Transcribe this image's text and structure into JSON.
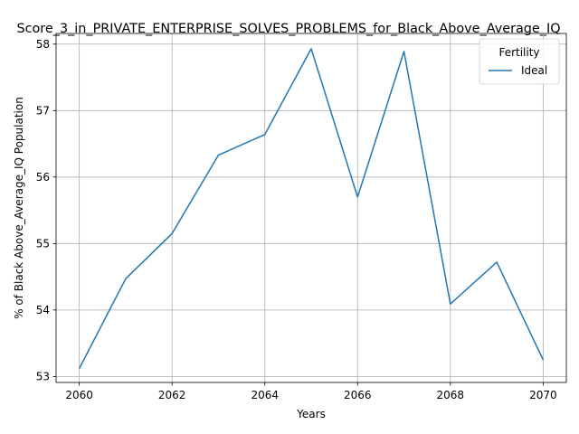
{
  "chart_data": {
    "type": "line",
    "title": "Score_3_in_PRIVATE_ENTERPRISE_SOLVES_PROBLEMS_for_Black_Above_Average_IQ",
    "xlabel": "Years",
    "ylabel": "% of Black Above_Average_IQ Population",
    "x": [
      2060,
      2061,
      2062,
      2063,
      2064,
      2065,
      2066,
      2067,
      2068,
      2069,
      2070
    ],
    "series": [
      {
        "name": "Ideal",
        "color": "#1f77b4",
        "values": [
          53.12,
          54.47,
          55.15,
          56.33,
          56.64,
          57.93,
          55.7,
          57.89,
          54.09,
          54.72,
          53.25
        ]
      }
    ],
    "xlim": [
      2059.5,
      2070.5
    ],
    "ylim": [
      52.91,
      58.16
    ],
    "xticks": [
      2060,
      2062,
      2064,
      2066,
      2068,
      2070
    ],
    "yticks": [
      53,
      54,
      55,
      56,
      57,
      58
    ],
    "grid": true,
    "legend": {
      "title": "Fertility",
      "placement": "top-right"
    }
  }
}
